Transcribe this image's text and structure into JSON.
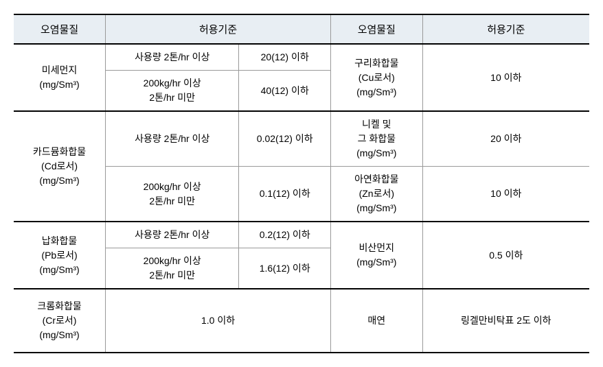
{
  "headers": {
    "pollutant1": "오염물질",
    "limit1": "허용기준",
    "pollutant2": "오염물질",
    "limit2": "허용기준"
  },
  "cells": {
    "r1_pollutant": "미세먼지\n(mg/Sm³)",
    "r1_cond1": "사용량 2톤/hr 이상",
    "r1_val1": "20(12) 이하",
    "r1_cond2": "200kg/hr 이상\n2톤/hr 미만",
    "r1_val2": "40(12) 이하",
    "r1_right_pollutant": "구리화합물\n(Cu로서)\n(mg/Sm³)",
    "r1_right_val": "10 이하",
    "r2_pollutant": "카드뮴화합물\n(Cd로서)\n(mg/Sm³)",
    "r2_cond1": "사용량 2톤/hr 이상",
    "r2_val1": "0.02(12) 이하",
    "r2_right1_pollutant": "니켈 및\n그 화합물\n(mg/Sm³)",
    "r2_right1_val": "20 이하",
    "r2_cond2": "200kg/hr 이상\n2톤/hr 미만",
    "r2_val2": "0.1(12) 이하",
    "r2_right2_pollutant": "아연화합물\n(Zn로서)\n(mg/Sm³)",
    "r2_right2_val": "10 이하",
    "r3_pollutant": "납화합물\n(Pb로서)\n(mg/Sm³)",
    "r3_cond1": "사용량 2톤/hr 이상",
    "r3_val1": "0.2(12) 이하",
    "r3_cond2": "200kg/hr 이상\n2톤/hr 미만",
    "r3_val2": "1.6(12) 이하",
    "r3_right_pollutant": "비산먼지\n(mg/Sm³)",
    "r3_right_val": "0.5 이하",
    "r4_pollutant": "크롬화합물\n(Cr로서)\n(mg/Sm³)",
    "r4_val": "1.0 이하",
    "r4_right_pollutant": "매연",
    "r4_right_val": "링겔만비탁표 2도 이하"
  },
  "style": {
    "header_bg": "#e8eef3",
    "border_color": "#999999",
    "thick_border_color": "#000000",
    "font_size_header": 15,
    "font_size_cell": 14
  }
}
